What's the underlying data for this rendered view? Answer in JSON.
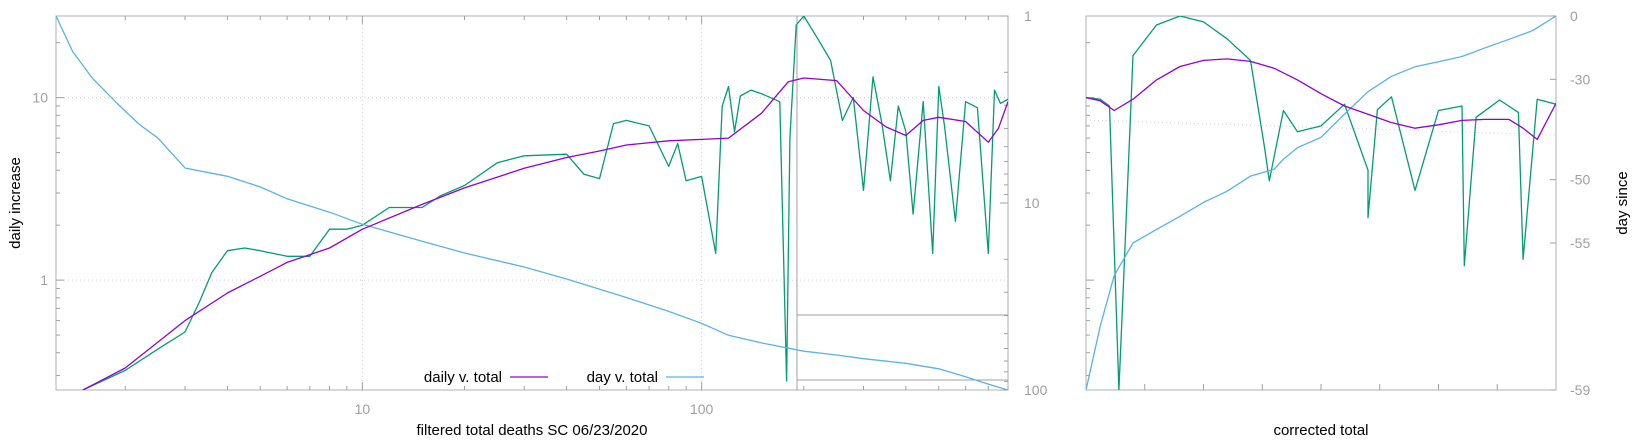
{
  "chart_data": [
    {
      "type": "line",
      "xlabel": "filtered total deaths SC 06/23/2020",
      "ylabel": "daily increase",
      "y2label": "",
      "x_scale": "log",
      "y_scale": "log",
      "xlim": [
        1.25,
        800
      ],
      "ylim": [
        0.25,
        28
      ],
      "y2lim": [
        1,
        100
      ],
      "y2_scale": "log",
      "y2_reversed": true,
      "x_ticks": [
        10,
        100
      ],
      "x_tick_labels": [
        "10",
        "100"
      ],
      "y_ticks": [
        1,
        10
      ],
      "y_tick_labels": [
        "1",
        "10"
      ],
      "y2_ticks": [
        1,
        10,
        100
      ],
      "y2_tick_labels": [
        "1",
        "10",
        "100"
      ],
      "grid": true,
      "legend_position": "bottom",
      "colors": {
        "daily": "#9400d3",
        "day": "#56b4e9",
        "raw": "#009e73",
        "frame": "#b0b0b0"
      },
      "legend": [
        {
          "label": "daily v. total",
          "color": "#9400d3"
        },
        {
          "label": "day v. total",
          "color": "#56b4e9"
        }
      ],
      "series": [
        {
          "name": "daily v. total",
          "axis": "y",
          "x": [
            1.5,
            2,
            3,
            4,
            5,
            6,
            8,
            10,
            15,
            20,
            30,
            40,
            50,
            60,
            80,
            100,
            120,
            150,
            180,
            200,
            250,
            300,
            350,
            400,
            450,
            500,
            600,
            700,
            750,
            800
          ],
          "y": [
            0.25,
            0.33,
            0.6,
            0.85,
            1.05,
            1.25,
            1.5,
            1.9,
            2.6,
            3.2,
            4.1,
            4.7,
            5.1,
            5.5,
            5.8,
            5.9,
            6.0,
            8.2,
            12.2,
            12.8,
            12.4,
            8.5,
            6.9,
            6.2,
            7.5,
            7.8,
            7.4,
            5.7,
            6.8,
            9.5
          ]
        },
        {
          "name": "day v. total",
          "axis": "y2",
          "x": [
            1.25,
            1.4,
            1.6,
            1.9,
            2.2,
            2.5,
            3,
            4,
            5,
            6,
            8,
            10,
            15,
            20,
            30,
            40,
            60,
            80,
            100,
            120,
            150,
            200,
            250,
            300,
            400,
            500,
            600,
            700,
            800
          ],
          "y": [
            1,
            1.55,
            2.15,
            2.95,
            3.8,
            4.5,
            6.5,
            7.2,
            8.2,
            9.5,
            11.2,
            13,
            16,
            18.5,
            22,
            25.5,
            32,
            38,
            44,
            51,
            56,
            62,
            65,
            68,
            72,
            77,
            85,
            93,
            100
          ]
        },
        {
          "name": "",
          "axis": "y",
          "x": [
            1.5,
            2,
            2.5,
            3,
            3.3,
            3.6,
            4,
            4.5,
            5,
            6,
            7,
            8,
            9,
            10,
            12,
            15,
            17,
            20,
            25,
            30,
            40,
            45,
            50,
            55,
            60,
            70,
            80,
            85,
            90,
            100,
            110,
            115,
            120,
            125,
            130,
            140,
            150,
            170,
            178,
            182,
            190,
            200,
            220,
            240,
            260,
            280,
            300,
            320,
            340,
            360,
            380,
            400,
            420,
            450,
            480,
            500,
            520,
            560,
            600,
            650,
            700,
            730,
            760,
            800
          ],
          "y": [
            0.25,
            0.32,
            0.42,
            0.52,
            0.75,
            1.1,
            1.45,
            1.5,
            1.45,
            1.35,
            1.35,
            1.9,
            1.9,
            2.0,
            2.5,
            2.5,
            2.9,
            3.3,
            4.4,
            4.8,
            4.9,
            3.8,
            3.6,
            7.2,
            7.5,
            7.0,
            4.2,
            5.6,
            3.5,
            3.7,
            1.4,
            9.0,
            11.5,
            6.5,
            10.2,
            11.0,
            10.5,
            9.5,
            0.28,
            6.0,
            25,
            28,
            21,
            16,
            7.5,
            10,
            3.1,
            13,
            7.2,
            3.5,
            9,
            6.5,
            2.3,
            9.5,
            1.4,
            11.5,
            7,
            2.1,
            9.5,
            8.8,
            1.4,
            11,
            9.3,
            9.8
          ]
        }
      ]
    },
    {
      "type": "line",
      "xlabel": "corrected total",
      "ylabel": "",
      "y2label": "day since",
      "x_scale": "linear",
      "y_scale": "log",
      "xlim": [
        0,
        1
      ],
      "ylim": [
        0.25,
        28
      ],
      "y2lim": [
        -59,
        0
      ],
      "y2_scale": "log",
      "y2_ticks": [
        0,
        -30,
        -50,
        -55,
        -59
      ],
      "y2_tick_labels": [
        "0",
        "-30",
        "-50",
        "-55",
        "-59"
      ],
      "grid": false,
      "colors": {
        "daily": "#9400d3",
        "day": "#56b4e9",
        "raw": "#009e73"
      },
      "series": [
        {
          "name": "",
          "axis": "y",
          "x": [
            0,
            0.03,
            0.06,
            0.1,
            0.15,
            0.2,
            0.25,
            0.3,
            0.35,
            0.4,
            0.45,
            0.5,
            0.55,
            0.6,
            0.65,
            0.7,
            0.75,
            0.8,
            0.85,
            0.9,
            0.93,
            0.96,
            1.0
          ],
          "y": [
            10,
            9.6,
            8.5,
            9.8,
            12.5,
            14.8,
            16,
            16.3,
            15.8,
            14.5,
            12.5,
            10.5,
            9.0,
            8.1,
            7.3,
            6.8,
            7.1,
            7.5,
            7.6,
            7.6,
            6.8,
            5.9,
            9.3
          ]
        },
        {
          "name": "",
          "axis": "y2",
          "x": [
            0,
            0.03,
            0.06,
            0.1,
            0.15,
            0.2,
            0.25,
            0.3,
            0.35,
            0.4,
            0.42,
            0.45,
            0.5,
            0.55,
            0.6,
            0.65,
            0.7,
            0.75,
            0.8,
            0.85,
            0.9,
            0.95,
            1.0
          ],
          "y": [
            -59,
            -58,
            -56.5,
            -55,
            -54.2,
            -53.3,
            -52.2,
            -51.2,
            -49.6,
            -48.8,
            -47.5,
            -45.8,
            -44.1,
            -39.5,
            -33.8,
            -29,
            -25.6,
            -23.6,
            -21.5,
            -17.6,
            -13.5,
            -8.9,
            0
          ]
        },
        {
          "name": "",
          "axis": "y",
          "x": [
            0,
            0.03,
            0.05,
            0.07,
            0.08,
            0.1,
            0.15,
            0.2,
            0.25,
            0.3,
            0.35,
            0.38,
            0.39,
            0.42,
            0.45,
            0.5,
            0.55,
            0.6,
            0.6,
            0.62,
            0.65,
            0.7,
            0.75,
            0.8,
            0.805,
            0.83,
            0.88,
            0.92,
            0.93,
            0.96,
            1.0
          ],
          "y": [
            10,
            9.8,
            9,
            0.25,
            1.0,
            17,
            25,
            28,
            26,
            21,
            16,
            5.3,
            3.5,
            8.5,
            6.5,
            7.0,
            9.2,
            4.0,
            2.2,
            8.6,
            10.1,
            3.1,
            8.5,
            9.0,
            1.2,
            7.8,
            9.7,
            8.3,
            1.3,
            9.8,
            9.2
          ]
        }
      ]
    }
  ]
}
